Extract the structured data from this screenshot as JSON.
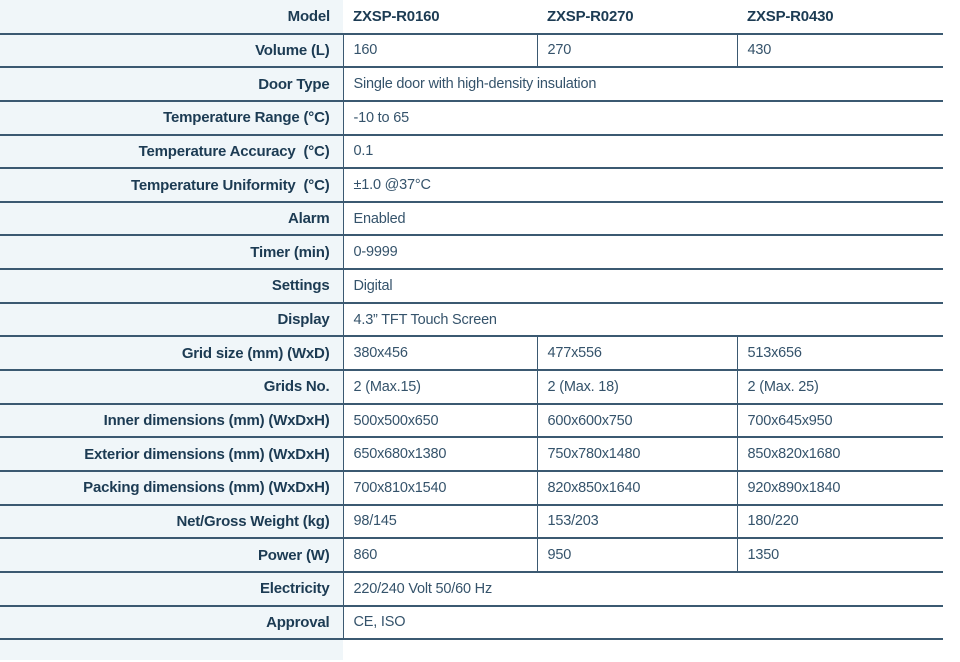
{
  "colors": {
    "label_text": "#1c3b53",
    "value_text": "#35536b",
    "border": "#3b5971",
    "label_bg": "#f0f6f9",
    "cell_bg": "#ffffff"
  },
  "table": {
    "header": {
      "label": "Model",
      "models": [
        "ZXSP-R0160",
        "ZXSP-R0270",
        "ZXSP-R0430"
      ]
    },
    "rows": [
      {
        "label": "Volume (L)",
        "values": [
          "160",
          "270",
          "430"
        ]
      },
      {
        "label": "Door Type",
        "span": "Single door with high-density insulation"
      },
      {
        "label": "Temperature Range (°C)",
        "span": "-10 to 65"
      },
      {
        "label": "Temperature Accuracy  (°C)",
        "span": "0.1"
      },
      {
        "label": "Temperature Uniformity  (°C)",
        "span": "±1.0 @37°C"
      },
      {
        "label": "Alarm",
        "span": "Enabled"
      },
      {
        "label": "Timer (min)",
        "span": "0-9999"
      },
      {
        "label": "Settings",
        "span": "Digital"
      },
      {
        "label": "Display",
        "span": "4.3” TFT Touch Screen"
      },
      {
        "label": "Grid size (mm) (WxD)",
        "values": [
          "380x456",
          "477x556",
          "513x656"
        ]
      },
      {
        "label": "Grids No.",
        "values": [
          "2 (Max.15)",
          "2 (Max. 18)",
          "2 (Max. 25)"
        ]
      },
      {
        "label": "Inner dimensions (mm) (WxDxH)",
        "values": [
          "500x500x650",
          "600x600x750",
          "700x645x950"
        ]
      },
      {
        "label": "Exterior dimensions (mm) (WxDxH)",
        "values": [
          "650x680x1380",
          "750x780x1480",
          "850x820x1680"
        ]
      },
      {
        "label": "Packing dimensions (mm) (WxDxH)",
        "values": [
          "700x810x1540",
          "820x850x1640",
          "920x890x1840"
        ]
      },
      {
        "label": "Net/Gross Weight (kg)",
        "values": [
          "98/145",
          "153/203",
          "180/220"
        ]
      },
      {
        "label": "Power (W)",
        "values": [
          "860",
          "950",
          "1350"
        ]
      },
      {
        "label": "Electricity",
        "span": "220/240 Volt 50/60 Hz"
      },
      {
        "label": "Approval",
        "span": "CE, ISO"
      }
    ]
  }
}
